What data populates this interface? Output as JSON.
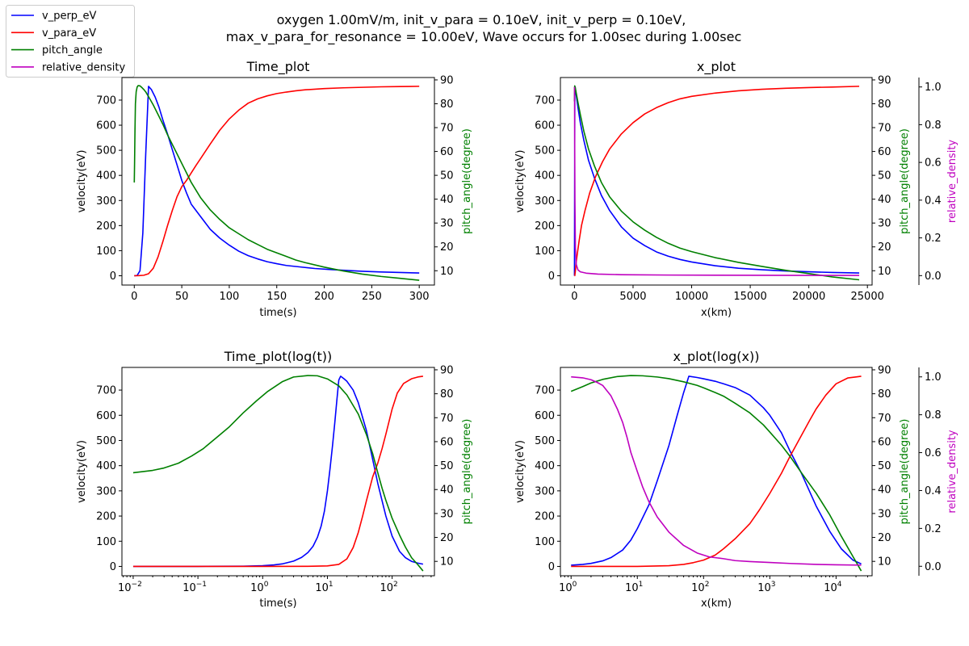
{
  "figure": {
    "suptitle_line1": "oxygen 1.00mV/m, init_v_para = 0.10eV, init_v_perp = 0.10eV,",
    "suptitle_line2": "max_v_para_for_resonance = 10.00eV, Wave occurs for 1.00sec during 1.00sec",
    "legend": [
      {
        "label": "v_perp_eV",
        "color": "#0000ff"
      },
      {
        "label": "v_para_eV",
        "color": "#ff0000"
      },
      {
        "label": "pitch_angle",
        "color": "#008000"
      },
      {
        "label": "relative_density",
        "color": "#bf00bf"
      }
    ]
  },
  "chart_data": [
    {
      "type": "line",
      "title": "Time_plot",
      "xlabel": "time(s)",
      "ylabel": "velocity(eV)",
      "y2label": "pitch_angle(degree)",
      "xscale": "linear",
      "xlim": [
        -13,
        316
      ],
      "xticks": [
        0,
        50,
        100,
        150,
        200,
        250,
        300
      ],
      "xtick_labels": [
        "0",
        "50",
        "100",
        "150",
        "200",
        "250",
        "300"
      ],
      "ylim": [
        -37,
        790
      ],
      "yticks": [
        0,
        100,
        200,
        300,
        400,
        500,
        600,
        700
      ],
      "y2lim": [
        4,
        91
      ],
      "y2ticks": [
        10,
        20,
        30,
        40,
        50,
        60,
        70,
        80,
        90
      ],
      "series": [
        {
          "name": "v_perp_eV",
          "axis": "y",
          "color": "#0000ff",
          "x": [
            0,
            3,
            6,
            9,
            12,
            15,
            18,
            22,
            26,
            30,
            35,
            40,
            45,
            50,
            55,
            60,
            70,
            80,
            90,
            100,
            110,
            120,
            130,
            140,
            150,
            160,
            175,
            190,
            205,
            220,
            240,
            260,
            280,
            300
          ],
          "y": [
            0.1,
            1,
            20,
            170,
            480,
            755,
            742,
            712,
            672,
            622,
            565,
            503,
            442,
            380,
            330,
            285,
            235,
            185,
            150,
            122,
            98,
            80,
            67,
            56,
            48,
            41,
            35,
            29,
            25,
            22,
            18,
            15,
            13,
            11
          ]
        },
        {
          "name": "v_para_eV",
          "axis": "y",
          "color": "#ff0000",
          "x": [
            0,
            5,
            10,
            15,
            20,
            25,
            30,
            35,
            40,
            45,
            50,
            55,
            60,
            65,
            70,
            80,
            90,
            100,
            110,
            120,
            130,
            140,
            150,
            160,
            170,
            180,
            200,
            220,
            240,
            260,
            280,
            300
          ],
          "y": [
            0.1,
            0.5,
            2,
            8,
            30,
            75,
            135,
            200,
            260,
            315,
            355,
            380,
            410,
            440,
            468,
            525,
            580,
            625,
            660,
            688,
            705,
            717,
            726,
            732,
            737,
            741,
            746,
            749,
            751,
            753,
            754,
            755
          ]
        },
        {
          "name": "pitch_angle",
          "axis": "y2",
          "color": "#008000",
          "x": [
            0,
            0.3,
            0.7,
            1.2,
            2,
            3,
            4,
            6,
            8,
            10,
            12,
            15,
            20,
            25,
            30,
            35,
            40,
            45,
            50,
            55,
            60,
            70,
            80,
            90,
            100,
            110,
            120,
            130,
            140,
            150,
            160,
            170,
            180,
            200,
            220,
            240,
            260,
            280,
            300
          ],
          "y": [
            47,
            55,
            68,
            80,
            85,
            87,
            87.6,
            87.5,
            86.8,
            86,
            85,
            83,
            79.5,
            75.5,
            71.5,
            67,
            63,
            59,
            55,
            51,
            47,
            40.5,
            35.5,
            31.5,
            28,
            25.5,
            23,
            21,
            19,
            17.5,
            16,
            14.5,
            13.4,
            11.5,
            9.9,
            8.6,
            7.6,
            6.8,
            6
          ]
        }
      ]
    },
    {
      "type": "line",
      "title": "x_plot",
      "xlabel": "x(km)",
      "ylabel": "velocity(eV)",
      "y2label": "pitch_angle(degree)",
      "y3label": "relative_density",
      "xscale": "linear",
      "xlim": [
        -1200,
        25400
      ],
      "xticks": [
        0,
        5000,
        10000,
        15000,
        20000,
        25000
      ],
      "xtick_labels": [
        "0",
        "5000",
        "10000",
        "15000",
        "20000",
        "25000"
      ],
      "ylim": [
        -37,
        790
      ],
      "yticks": [
        0,
        100,
        200,
        300,
        400,
        500,
        600,
        700
      ],
      "y2lim": [
        4,
        91
      ],
      "y2ticks": [
        10,
        20,
        30,
        40,
        50,
        60,
        70,
        80,
        90
      ],
      "y3lim": [
        -0.05,
        1.05
      ],
      "y3ticks": [
        0.0,
        0.2,
        0.4,
        0.6,
        0.8,
        1.0
      ],
      "series": [
        {
          "name": "v_perp_eV",
          "axis": "y",
          "color": "#0000ff",
          "x": [
            0,
            30,
            60,
            150,
            300,
            500,
            800,
            1200,
            1700,
            2300,
            3000,
            4000,
            5000,
            6000,
            7000,
            8000,
            9000,
            10000,
            12000,
            14000,
            16000,
            18000,
            20000,
            22000,
            24300
          ],
          "y": [
            0.1,
            755,
            750,
            720,
            670,
            610,
            540,
            460,
            390,
            320,
            260,
            195,
            150,
            120,
            95,
            78,
            65,
            55,
            40,
            30,
            24,
            19,
            16,
            13,
            11
          ]
        },
        {
          "name": "v_para_eV",
          "axis": "y",
          "color": "#ff0000",
          "x": [
            0,
            30,
            80,
            150,
            250,
            400,
            600,
            900,
            1300,
            1800,
            2400,
            3000,
            4000,
            5000,
            6000,
            7000,
            8000,
            9000,
            10000,
            12000,
            14000,
            16000,
            18000,
            20000,
            22000,
            24300
          ],
          "y": [
            0.1,
            0.5,
            20,
            55,
            90,
            140,
            200,
            260,
            330,
            395,
            455,
            505,
            565,
            610,
            645,
            670,
            690,
            705,
            715,
            728,
            737,
            743,
            747,
            750,
            752,
            755
          ]
        },
        {
          "name": "pitch_angle",
          "axis": "y2",
          "color": "#008000",
          "x": [
            0,
            20,
            60,
            150,
            300,
            500,
            800,
            1200,
            1700,
            2300,
            3000,
            4000,
            5000,
            6000,
            7000,
            8000,
            9000,
            10000,
            12000,
            14000,
            16000,
            18000,
            20000,
            22000,
            24300
          ],
          "y": [
            81,
            87.5,
            87,
            84.5,
            80.5,
            75.5,
            68.5,
            61,
            54,
            47,
            41,
            35,
            30.5,
            27,
            24,
            21.5,
            19.5,
            18,
            15.5,
            13.5,
            11.8,
            10.2,
            8.8,
            7.4,
            6.2
          ]
        },
        {
          "name": "relative_density",
          "axis": "y3",
          "color": "#bf00bf",
          "x": [
            0,
            3,
            6,
            10,
            20,
            40,
            80,
            150,
            300,
            500,
            1000,
            2000,
            4000,
            8000,
            12000,
            16000,
            20000,
            24300
          ],
          "y": [
            1.0,
            0.99,
            0.97,
            0.9,
            0.7,
            0.4,
            0.15,
            0.06,
            0.03,
            0.02,
            0.013,
            0.008,
            0.005,
            0.003,
            0.002,
            0.0015,
            0.0012,
            0.001
          ]
        }
      ]
    },
    {
      "type": "line",
      "title": "Time_plot(log(t))",
      "xlabel": "time(s)",
      "ylabel": "velocity(eV)",
      "y2label": "pitch_angle(degree)",
      "xscale": "log",
      "xlim": [
        0.0067,
        450
      ],
      "xticks": [
        0.01,
        0.1,
        1,
        10,
        100
      ],
      "xtick_base": "10",
      "xtick_exps": [
        "−2",
        "−1",
        "0",
        "1",
        "2"
      ],
      "ylim": [
        -37,
        790
      ],
      "yticks": [
        0,
        100,
        200,
        300,
        400,
        500,
        600,
        700
      ],
      "y2lim": [
        4,
        91
      ],
      "y2ticks": [
        10,
        20,
        30,
        40,
        50,
        60,
        70,
        80,
        90
      ],
      "series": [
        {
          "name": "v_perp_eV",
          "axis": "y",
          "color": "#0000ff",
          "x": [
            0.01,
            0.1,
            0.5,
            1,
            1.5,
            2,
            3,
            4,
            5,
            6,
            7,
            8,
            9,
            10,
            11,
            12,
            13,
            14,
            15,
            16,
            18,
            20,
            25,
            30,
            40,
            50,
            60,
            70,
            80,
            100,
            130,
            160,
            200,
            250,
            300
          ],
          "y": [
            0.1,
            0.2,
            1,
            3,
            6,
            10,
            21,
            36,
            55,
            80,
            115,
            160,
            220,
            300,
            390,
            480,
            570,
            660,
            740,
            755,
            745,
            735,
            700,
            650,
            540,
            425,
            330,
            260,
            200,
            120,
            60,
            35,
            20,
            13,
            9
          ]
        },
        {
          "name": "v_para_eV",
          "axis": "y",
          "color": "#ff0000",
          "x": [
            0.01,
            0.1,
            1,
            5,
            10,
            15,
            20,
            25,
            30,
            35,
            40,
            50,
            60,
            70,
            80,
            100,
            120,
            150,
            200,
            250,
            300
          ],
          "y": [
            0.1,
            0.1,
            0.1,
            0.5,
            2,
            8,
            30,
            75,
            135,
            200,
            260,
            355,
            410,
            468,
            525,
            625,
            688,
            726,
            745,
            752,
            755
          ]
        },
        {
          "name": "pitch_angle",
          "axis": "y2",
          "color": "#008000",
          "x": [
            0.01,
            0.02,
            0.03,
            0.05,
            0.08,
            0.12,
            0.2,
            0.3,
            0.5,
            0.8,
            1.2,
            2,
            3,
            5,
            7,
            10,
            15,
            20,
            30,
            40,
            50,
            60,
            70,
            80,
            100,
            130,
            160,
            200,
            250,
            300
          ],
          "y": [
            47,
            48,
            49,
            51,
            54,
            57,
            62,
            66,
            72,
            77,
            81,
            85,
            87,
            87.6,
            87.5,
            86.2,
            83.3,
            79.5,
            71.5,
            63,
            55,
            47,
            40.5,
            35.5,
            28,
            21,
            16,
            11.5,
            8.6,
            6
          ]
        }
      ]
    },
    {
      "type": "line",
      "title": "x_plot(log(x))",
      "xlabel": "x(km)",
      "ylabel": "velocity(eV)",
      "y2label": "pitch_angle(degree)",
      "y3label": "relative_density",
      "xscale": "log",
      "xlim": [
        0.69,
        35000
      ],
      "xticks": [
        1,
        10,
        100,
        1000,
        10000
      ],
      "xtick_base": "10",
      "xtick_exps": [
        "0",
        "1",
        "2",
        "3",
        "4"
      ],
      "ylim": [
        -37,
        790
      ],
      "yticks": [
        0,
        100,
        200,
        300,
        400,
        500,
        600,
        700
      ],
      "y2lim": [
        4,
        91
      ],
      "y2ticks": [
        10,
        20,
        30,
        40,
        50,
        60,
        70,
        80,
        90
      ],
      "y3lim": [
        -0.05,
        1.05
      ],
      "y3ticks": [
        0.0,
        0.2,
        0.4,
        0.6,
        0.8,
        1.0
      ],
      "series": [
        {
          "name": "v_perp_eV",
          "axis": "y",
          "color": "#0000ff",
          "x": [
            1,
            1.5,
            2,
            3,
            4,
            6,
            8,
            10,
            15,
            20,
            30,
            40,
            50,
            60,
            80,
            100,
            150,
            200,
            300,
            500,
            800,
            1000,
            1500,
            2000,
            3000,
            5000,
            8000,
            12000,
            18000,
            24000
          ],
          "y": [
            5,
            8,
            12,
            22,
            35,
            65,
            105,
            150,
            245,
            340,
            480,
            600,
            690,
            755,
            750,
            745,
            735,
            725,
            710,
            680,
            630,
            600,
            530,
            460,
            370,
            240,
            140,
            70,
            25,
            10
          ]
        },
        {
          "name": "v_para_eV",
          "axis": "y",
          "color": "#ff0000",
          "x": [
            1,
            10,
            30,
            50,
            70,
            100,
            150,
            200,
            300,
            500,
            700,
            1000,
            1500,
            2000,
            3000,
            4000,
            5000,
            7000,
            10000,
            15000,
            20000,
            24000
          ],
          "y": [
            0.1,
            0.2,
            3,
            8,
            15,
            25,
            45,
            70,
            110,
            170,
            225,
            290,
            370,
            435,
            520,
            580,
            625,
            680,
            725,
            748,
            752,
            755
          ]
        },
        {
          "name": "pitch_angle",
          "axis": "y2",
          "color": "#008000",
          "x": [
            1,
            1.5,
            2,
            3,
            5,
            8,
            12,
            20,
            30,
            50,
            80,
            100,
            150,
            200,
            300,
            500,
            800,
            1000,
            1500,
            2000,
            3000,
            5000,
            8000,
            12000,
            18000,
            24000
          ],
          "y": [
            81,
            83,
            84.5,
            86,
            87.2,
            87.6,
            87.5,
            87,
            86.3,
            85,
            83.5,
            82.5,
            80.5,
            79,
            76,
            72,
            67,
            64,
            58.5,
            54,
            47,
            38.5,
            29.5,
            20.5,
            12,
            6
          ]
        },
        {
          "name": "relative_density",
          "axis": "y3",
          "color": "#bf00bf",
          "x": [
            1,
            1.5,
            2,
            2.5,
            3,
            4,
            5,
            6,
            7,
            8,
            10,
            12,
            15,
            20,
            30,
            50,
            80,
            120,
            200,
            300,
            500,
            1000,
            2000,
            5000,
            10000,
            24000
          ],
          "y": [
            1.0,
            0.995,
            0.985,
            0.97,
            0.955,
            0.9,
            0.83,
            0.76,
            0.68,
            0.6,
            0.5,
            0.42,
            0.34,
            0.26,
            0.18,
            0.11,
            0.07,
            0.05,
            0.04,
            0.03,
            0.025,
            0.02,
            0.015,
            0.01,
            0.008,
            0.006
          ]
        }
      ]
    }
  ]
}
